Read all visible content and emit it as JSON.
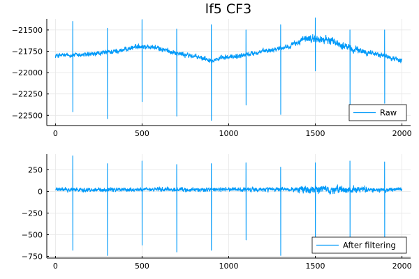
{
  "title": "lf5 CF3",
  "chart_data": [
    {
      "type": "line",
      "series": [
        {
          "name": "Raw",
          "color": "#009af9"
        }
      ],
      "x_range": [
        0,
        2000
      ],
      "xlim": [
        -50,
        2050
      ],
      "ylim": [
        -22620,
        -21370
      ],
      "xticks": [
        0,
        500,
        1000,
        1500,
        2000
      ],
      "yticks": [
        -22500,
        -22250,
        -22000,
        -21750,
        -21500
      ],
      "xtick_labels": [
        "0",
        "500",
        "1000",
        "1500",
        "2000"
      ],
      "ytick_labels": [
        "−22500",
        "−22250",
        "−22000",
        "−21750",
        "−21500"
      ],
      "grid": true,
      "legend_position": "bottom-right",
      "baseline_points": [
        [
          0,
          -21800
        ],
        [
          200,
          -21790
        ],
        [
          380,
          -21740
        ],
        [
          480,
          -21690
        ],
        [
          560,
          -21700
        ],
        [
          720,
          -21780
        ],
        [
          900,
          -21850
        ],
        [
          1100,
          -21790
        ],
        [
          1350,
          -21690
        ],
        [
          1450,
          -21600
        ],
        [
          1580,
          -21620
        ],
        [
          1720,
          -21730
        ],
        [
          1850,
          -21780
        ],
        [
          2000,
          -21860
        ]
      ],
      "spikes": [
        {
          "x": 100,
          "max": -21400,
          "min": -22460
        },
        {
          "x": 300,
          "max": -21480,
          "min": -22540
        },
        {
          "x": 500,
          "max": -21380,
          "min": -22340
        },
        {
          "x": 700,
          "max": -21490,
          "min": -22510
        },
        {
          "x": 900,
          "max": -21440,
          "min": -22560
        },
        {
          "x": 1100,
          "max": -21500,
          "min": -22380
        },
        {
          "x": 1300,
          "max": -21440,
          "min": -22490
        },
        {
          "x": 1500,
          "max": -21360,
          "min": -21980
        },
        {
          "x": 1700,
          "max": -21500,
          "min": -22380
        },
        {
          "x": 1900,
          "max": -21500,
          "min": -22360
        }
      ],
      "noise_amplitude": 35,
      "noise_amplitude_high": 55,
      "noise_high_range": [
        1400,
        1800
      ]
    },
    {
      "type": "line",
      "series": [
        {
          "name": "After filtering",
          "color": "#009af9"
        }
      ],
      "x_range": [
        0,
        2000
      ],
      "xlim": [
        -50,
        2050
      ],
      "ylim": [
        -770,
        430
      ],
      "xticks": [
        0,
        500,
        1000,
        1500,
        2000
      ],
      "yticks": [
        -750,
        -500,
        -250,
        0,
        250
      ],
      "xtick_labels": [
        "0",
        "500",
        "1000",
        "1500",
        "2000"
      ],
      "ytick_labels": [
        "−750",
        "−500",
        "−250",
        "0",
        "250"
      ],
      "grid": true,
      "legend_position": "bottom-right",
      "baseline_points": [
        [
          0,
          20
        ],
        [
          2000,
          20
        ]
      ],
      "spikes": [
        {
          "x": 100,
          "max": 410,
          "min": -680
        },
        {
          "x": 300,
          "max": 320,
          "min": -740
        },
        {
          "x": 500,
          "max": 350,
          "min": -620
        },
        {
          "x": 700,
          "max": 310,
          "min": -700
        },
        {
          "x": 900,
          "max": 320,
          "min": -680
        },
        {
          "x": 1100,
          "max": 330,
          "min": -560
        },
        {
          "x": 1300,
          "max": 280,
          "min": -740
        },
        {
          "x": 1500,
          "max": 330,
          "min": -560
        },
        {
          "x": 1700,
          "max": 350,
          "min": -570
        },
        {
          "x": 1900,
          "max": 340,
          "min": -560
        }
      ],
      "noise_amplitude": 30,
      "noise_amplitude_high": 50,
      "noise_high_range": [
        1400,
        1800
      ]
    }
  ]
}
